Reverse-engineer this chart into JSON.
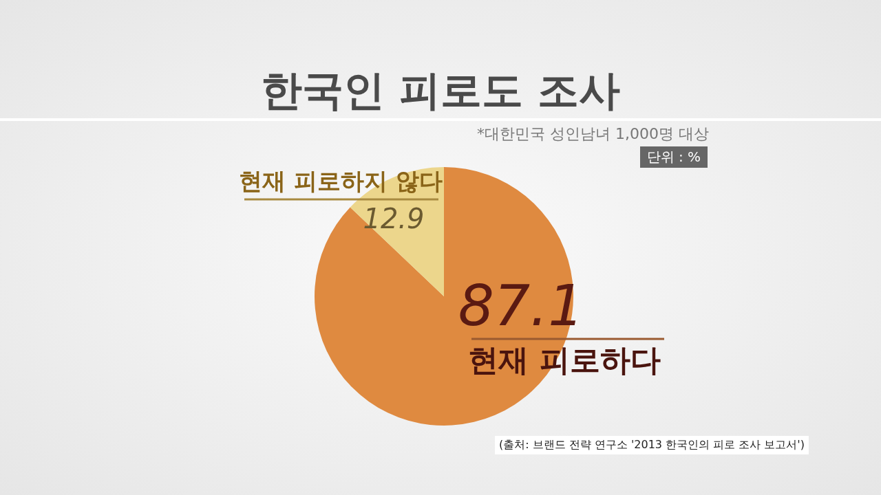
{
  "chart_data": {
    "type": "pie",
    "title": "한국인 피로도 조사",
    "categories": [
      "현재 피로하다",
      "현재 피로하지 않다"
    ],
    "values": [
      87.1,
      12.9
    ],
    "colors": [
      "#df8a40",
      "#ecd68c"
    ],
    "data_labels": true,
    "annotations": [
      "*대한민국 성인남녀 1,000명 대상",
      "단위 : %",
      "(출처: 브랜드 전략 연구소 '2013 한국인의 피로 조사 보고서')"
    ]
  }
}
